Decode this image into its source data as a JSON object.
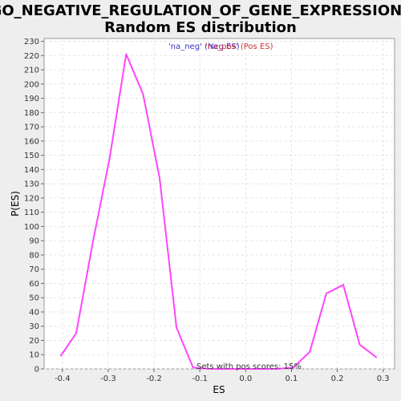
{
  "chart_data": {
    "type": "line",
    "title_lines": [
      "GO_NEGATIVE_REGULATION_OF_GENE_EXPRESSION:",
      "Random ES distribution"
    ],
    "xlabel": "ES",
    "ylabel": "P(ES)",
    "xlim": [
      -0.44,
      0.325
    ],
    "ylim": [
      0,
      232
    ],
    "x_ticks": [
      -0.4,
      -0.3,
      -0.2,
      -0.1,
      0.0,
      0.1,
      0.2,
      0.3
    ],
    "x_tick_labels": [
      "-0.4",
      "-0.3",
      "-0.2",
      "-0.1",
      "0.0",
      "0.1",
      "0.2",
      "0.3"
    ],
    "y_ticks": [
      0,
      10,
      20,
      30,
      40,
      50,
      60,
      70,
      80,
      90,
      100,
      110,
      120,
      130,
      140,
      150,
      160,
      170,
      180,
      190,
      200,
      210,
      220,
      230
    ],
    "y_tick_labels": [
      "0",
      "10",
      "20",
      "30",
      "40",
      "50",
      "60",
      "70",
      "80",
      "90",
      "100",
      "110",
      "120",
      "130",
      "140",
      "150",
      "160",
      "170",
      "180",
      "190",
      "200",
      "210",
      "220",
      "230"
    ],
    "grid": true,
    "legend": {
      "placement": "top-center",
      "entries": [
        {
          "label": "'na_neg' (Neg ES)",
          "color": "#3333cc"
        },
        {
          "label": "'na_pos' (Pos ES)",
          "color": "#cc3333"
        }
      ]
    },
    "annotation": "Sets with pos scores: 15%",
    "series": [
      {
        "color": "#ff44ff",
        "x": [
          -0.404,
          -0.37,
          -0.333,
          -0.297,
          -0.261,
          -0.224,
          -0.188,
          -0.151,
          -0.115,
          -0.079,
          -0.042,
          -0.006,
          0.031,
          0.067,
          0.104,
          0.14,
          0.176,
          0.213,
          0.249,
          0.286
        ],
        "y": [
          9,
          25,
          90,
          148,
          221,
          193,
          134,
          29,
          1,
          0,
          0,
          0,
          0,
          0,
          1,
          12,
          53,
          59,
          17,
          8
        ]
      }
    ]
  }
}
